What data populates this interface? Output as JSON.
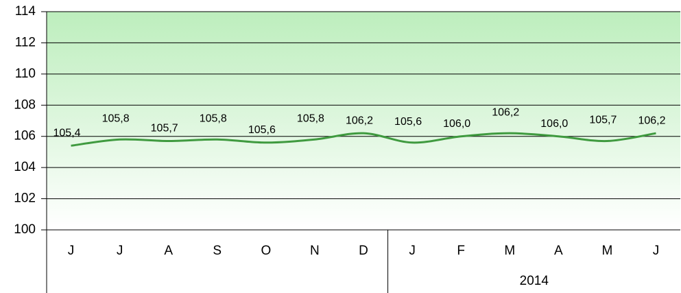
{
  "chart_data": {
    "type": "line",
    "categories": [
      "J",
      "J",
      "A",
      "S",
      "O",
      "N",
      "D",
      "J",
      "F",
      "M",
      "A",
      "M",
      "J"
    ],
    "category_groups": [
      {
        "label": null,
        "count": 7
      },
      {
        "label": "2014",
        "count": 6
      }
    ],
    "series": [
      {
        "name": null,
        "color": "#3f9a3f",
        "values": [
          105.4,
          105.8,
          105.7,
          105.8,
          105.6,
          105.8,
          106.2,
          105.6,
          106.0,
          106.2,
          106.0,
          105.7,
          106.2
        ],
        "value_labels": [
          "105,4",
          "105,8",
          "105,7",
          "105,8",
          "105,6",
          "105,8",
          "106,2",
          "105,6",
          "106,0",
          "106,2",
          "106,0",
          "105,7",
          "106,2"
        ]
      }
    ],
    "ylim": [
      100,
      114
    ],
    "yticks": [
      100,
      102,
      104,
      106,
      108,
      110,
      112,
      114
    ],
    "grid": true
  }
}
